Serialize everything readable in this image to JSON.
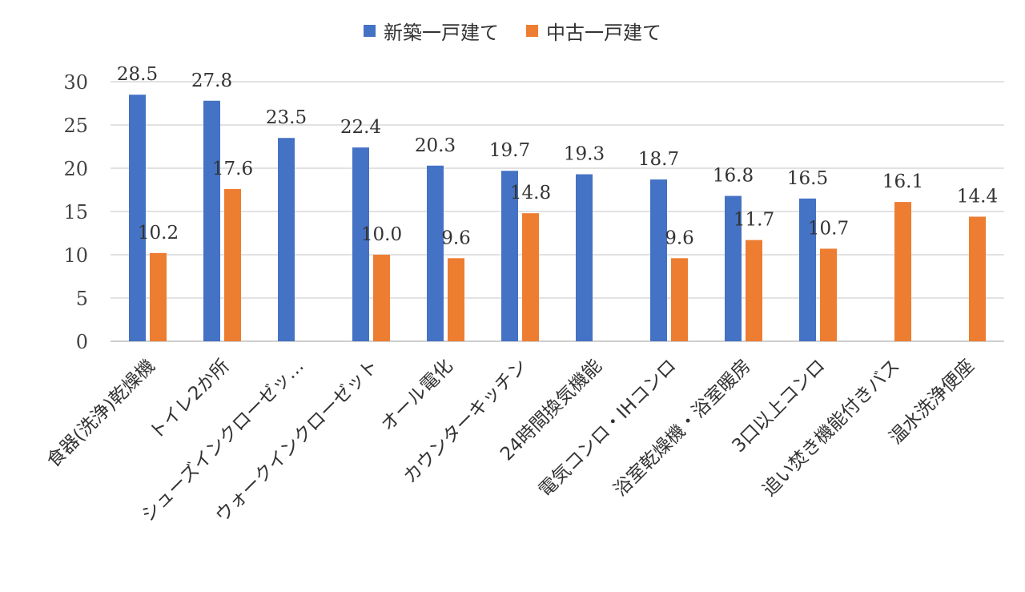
{
  "chart_data": {
    "type": "bar",
    "title": "",
    "xlabel": "",
    "ylabel": "",
    "ylim": [
      0,
      30
    ],
    "yticks": [
      0,
      5,
      10,
      15,
      20,
      25,
      30
    ],
    "grid": true,
    "legend_position": "top-center",
    "categories": [
      "食器(洗浄)乾燥機",
      "トイレ2か所",
      "シューズインクローゼッ…",
      "ウォークインクローゼット",
      "オール電化",
      "カウンターキッチン",
      "24時間換気機能",
      "電気コンロ・IHコンロ",
      "浴室乾燥機・浴室暖房",
      "3口以上コンロ",
      "追い焚き機能付きバス",
      "温水洗浄便座"
    ],
    "series": [
      {
        "name": "新築一戸建て",
        "color": "#4472C4",
        "values": [
          28.5,
          27.8,
          23.5,
          22.4,
          20.3,
          19.7,
          19.3,
          18.7,
          16.8,
          16.5,
          null,
          null
        ],
        "labels": [
          "28.5",
          "27.8",
          "23.5",
          "22.4",
          "20.3",
          "19.7",
          "19.3",
          "18.7",
          "16.8",
          "16.5",
          null,
          null
        ]
      },
      {
        "name": "中古一戸建て",
        "color": "#ED7D31",
        "values": [
          10.2,
          17.6,
          null,
          10.0,
          9.6,
          14.8,
          null,
          9.6,
          11.7,
          10.7,
          16.1,
          14.4
        ],
        "labels": [
          "10.2",
          "17.6",
          null,
          "10.0",
          "9.6",
          "14.8",
          null,
          "9.6",
          "11.7",
          "10.7",
          "16.1",
          "14.4"
        ]
      }
    ]
  }
}
